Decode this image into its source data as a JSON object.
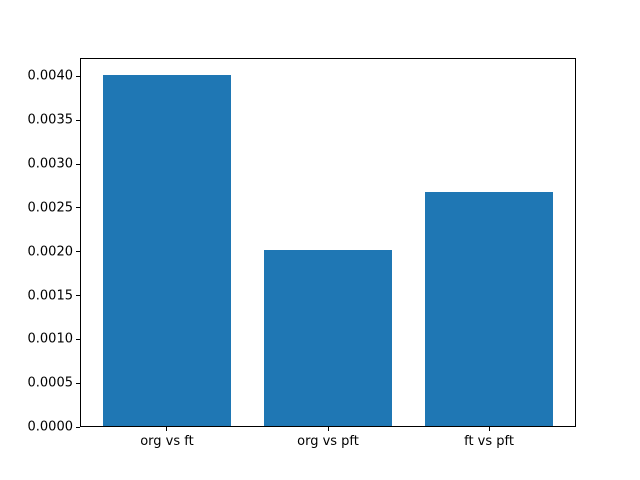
{
  "figure": {
    "background": "#ffffff",
    "title": ""
  },
  "chart_data": {
    "type": "bar",
    "categories": [
      "org vs ft",
      "org vs pft",
      "ft vs pft"
    ],
    "values": [
      0.00402,
      0.00202,
      0.00268
    ],
    "title": "",
    "xlabel": "",
    "ylabel": "",
    "xlim": [
      -0.54,
      2.54
    ],
    "ylim": [
      0,
      0.00421
    ],
    "yticks": [
      0.0,
      0.0005,
      0.001,
      0.0015,
      0.002,
      0.0025,
      0.003,
      0.0035,
      0.004
    ],
    "ytick_labels": [
      "0.0000",
      "0.0005",
      "0.0010",
      "0.0015",
      "0.0020",
      "0.0025",
      "0.0030",
      "0.0035",
      "0.0040"
    ],
    "bar_color": "#1f77b4",
    "bar_width_fraction": 0.8,
    "grid": false,
    "legend_position": "none",
    "axis_color": "#000000",
    "text_color": "#000000"
  }
}
